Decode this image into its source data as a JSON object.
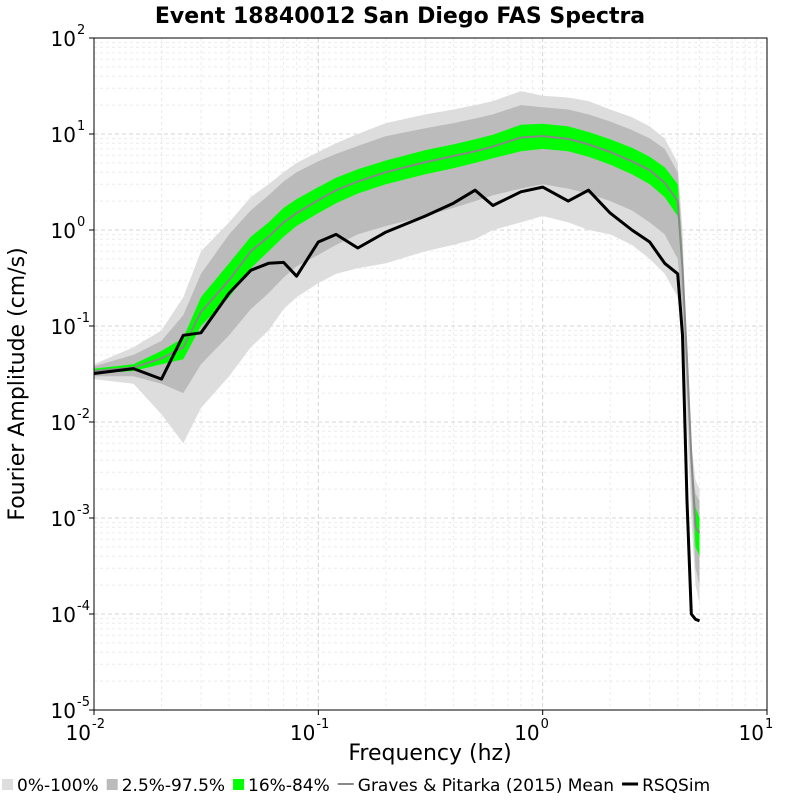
{
  "chart_data": {
    "type": "line",
    "title": "Event 18840012 San Diego FAS Spectra",
    "xlabel": "Frequency (hz)",
    "ylabel": "Fourier Amplitude (cm/s)",
    "x_scale": "log",
    "y_scale": "log",
    "xlim": [
      0.01,
      10
    ],
    "ylim": [
      1e-05,
      100
    ],
    "x_ticks": [
      {
        "base": "10",
        "exp": "-2",
        "value": 0.01
      },
      {
        "base": "10",
        "exp": "-1",
        "value": 0.1
      },
      {
        "base": "10",
        "exp": "0",
        "value": 1
      },
      {
        "base": "10",
        "exp": "1",
        "value": 10
      }
    ],
    "y_ticks": [
      {
        "base": "10",
        "exp": "2",
        "value": 100
      },
      {
        "base": "10",
        "exp": "1",
        "value": 10
      },
      {
        "base": "10",
        "exp": "0",
        "value": 1
      },
      {
        "base": "10",
        "exp": "-1",
        "value": 0.1
      },
      {
        "base": "10",
        "exp": "-2",
        "value": 0.01
      },
      {
        "base": "10",
        "exp": "-3",
        "value": 0.001
      },
      {
        "base": "10",
        "exp": "-4",
        "value": 0.0001
      },
      {
        "base": "10",
        "exp": "-5",
        "value": 1e-05
      }
    ],
    "grid": true,
    "legend_position": "bottom",
    "x": [
      0.01,
      0.015,
      0.02,
      0.025,
      0.03,
      0.04,
      0.05,
      0.06,
      0.07,
      0.08,
      0.1,
      0.12,
      0.15,
      0.2,
      0.3,
      0.4,
      0.5,
      0.6,
      0.8,
      1.0,
      1.3,
      1.6,
      2.0,
      2.5,
      3.0,
      3.5,
      4.0,
      4.2,
      4.4,
      4.6,
      4.8,
      5.0
    ],
    "series": [
      {
        "name": "0%-100%",
        "kind": "band",
        "color": "#dddddd",
        "lower": [
          0.028,
          0.025,
          0.012,
          0.006,
          0.014,
          0.03,
          0.06,
          0.09,
          0.15,
          0.2,
          0.28,
          0.35,
          0.4,
          0.45,
          0.6,
          0.7,
          0.8,
          1.0,
          1.2,
          1.4,
          1.2,
          1.0,
          0.9,
          0.7,
          0.5,
          0.35,
          0.2,
          0.08,
          0.01,
          0.001,
          0.0002,
          0.00013
        ],
        "upper": [
          0.04,
          0.06,
          0.09,
          0.2,
          0.6,
          1.2,
          2.2,
          3.0,
          4.0,
          5.0,
          6.5,
          8.0,
          10.0,
          13.0,
          16.0,
          18.0,
          20.0,
          22.0,
          28.0,
          25.0,
          24.0,
          22.0,
          18.0,
          15.0,
          12.0,
          9.0,
          5.0,
          1.0,
          0.05,
          0.006,
          0.0025,
          0.002
        ]
      },
      {
        "name": "2.5%-97.5%",
        "kind": "band",
        "color": "#bbbbbb",
        "lower": [
          0.03,
          0.03,
          0.025,
          0.02,
          0.04,
          0.08,
          0.15,
          0.22,
          0.32,
          0.42,
          0.55,
          0.7,
          0.9,
          1.1,
          1.4,
          1.7,
          2.0,
          2.3,
          2.7,
          3.0,
          2.7,
          2.4,
          2.0,
          1.6,
          1.2,
          0.9,
          0.5,
          0.15,
          0.02,
          0.002,
          0.0003,
          0.0002
        ],
        "upper": [
          0.038,
          0.05,
          0.07,
          0.13,
          0.35,
          0.9,
          1.6,
          2.3,
          3.2,
          4.0,
          5.2,
          6.2,
          7.5,
          9.5,
          11.5,
          13.0,
          14.5,
          16.0,
          20.0,
          19.0,
          18.0,
          16.0,
          13.5,
          11.0,
          9.0,
          7.0,
          4.0,
          0.7,
          0.03,
          0.004,
          0.0018,
          0.0015
        ]
      },
      {
        "name": "16%-84%",
        "kind": "band",
        "color": "#00ff00",
        "lower": [
          0.032,
          0.034,
          0.04,
          0.045,
          0.1,
          0.2,
          0.4,
          0.6,
          0.85,
          1.1,
          1.5,
          1.9,
          2.4,
          3.0,
          3.8,
          4.4,
          5.0,
          5.6,
          6.6,
          7.0,
          6.6,
          5.8,
          4.8,
          3.8,
          3.0,
          2.2,
          1.4,
          0.3,
          0.04,
          0.004,
          0.0005,
          0.0004
        ],
        "upper": [
          0.036,
          0.04,
          0.055,
          0.075,
          0.2,
          0.45,
          0.85,
          1.2,
          1.7,
          2.1,
          2.8,
          3.5,
          4.3,
          5.3,
          6.8,
          7.8,
          8.8,
          9.8,
          12.5,
          12.8,
          12.0,
          10.5,
          8.8,
          7.2,
          5.8,
          4.5,
          3.0,
          0.5,
          0.05,
          0.005,
          0.0013,
          0.001
        ]
      },
      {
        "name": "Graves & Pitarka (2015) Mean",
        "kind": "line",
        "color": "#888888",
        "values": [
          0.034,
          0.037,
          0.046,
          0.06,
          0.14,
          0.3,
          0.6,
          0.85,
          1.2,
          1.5,
          2.05,
          2.6,
          3.2,
          4.0,
          5.1,
          5.9,
          6.6,
          7.4,
          9.2,
          9.5,
          8.9,
          7.8,
          6.5,
          5.2,
          4.2,
          3.1,
          2.0,
          0.4,
          0.045,
          0.0045,
          0.0008,
          0.0007
        ]
      },
      {
        "name": "RSQSim",
        "kind": "line",
        "color": "#000000",
        "values": [
          0.032,
          0.036,
          0.028,
          0.08,
          0.085,
          0.22,
          0.38,
          0.45,
          0.46,
          0.33,
          0.75,
          0.9,
          0.65,
          0.95,
          1.4,
          1.9,
          2.6,
          1.8,
          2.5,
          2.8,
          2.0,
          2.6,
          1.5,
          1.0,
          0.75,
          0.45,
          0.35,
          0.08,
          0.0015,
          0.0001,
          8.8e-05,
          8.5e-05
        ]
      }
    ]
  }
}
